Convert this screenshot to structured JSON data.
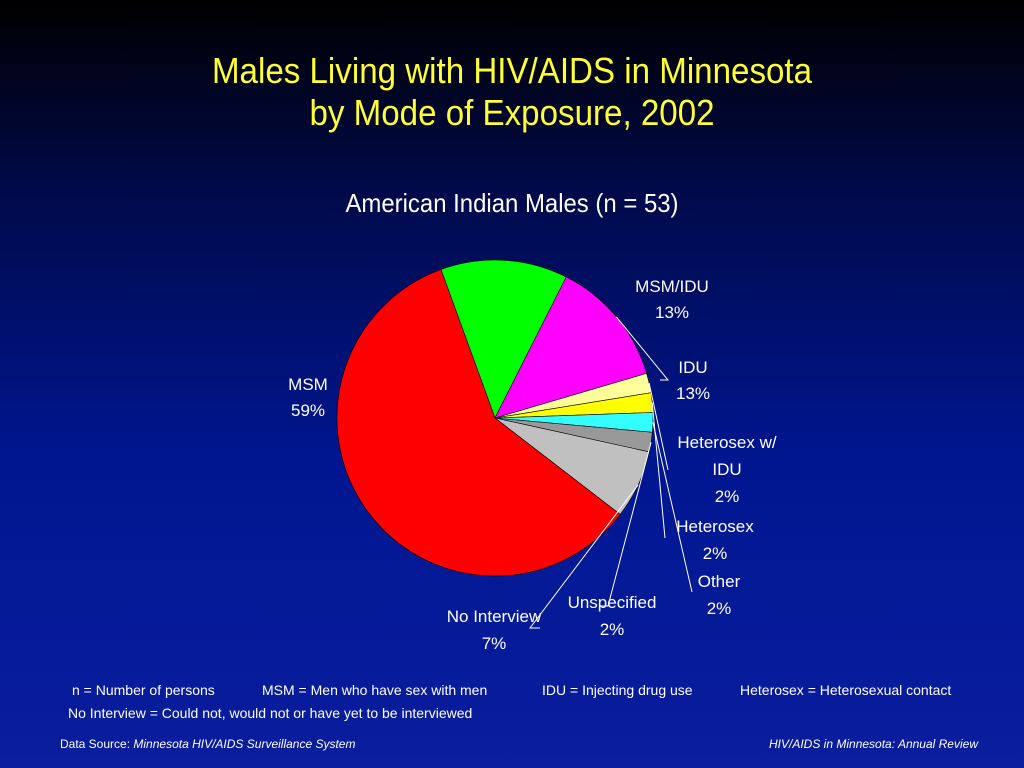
{
  "chart_data": {
    "type": "pie",
    "title_line1": "Males Living with HIV/AIDS in Minnesota",
    "title_line2": "by Mode of Exposure, 2002",
    "subtitle": "American Indian Males (n = 53)",
    "slices": [
      {
        "name": "MSM",
        "percent_label": "59%",
        "value": 59,
        "color": "#ff0000"
      },
      {
        "name": "MSM/IDU",
        "percent_label": "13%",
        "value": 13,
        "color": "#00ff00"
      },
      {
        "name": "IDU",
        "percent_label": "13%",
        "value": 13,
        "color": "#ff00ff"
      },
      {
        "name": "Heterosex w/ IDU",
        "label_lines": [
          "Heterosex w/",
          "IDU"
        ],
        "percent_label": "2%",
        "value": 2,
        "color": "#ffff99"
      },
      {
        "name": "Heterosex",
        "percent_label": "2%",
        "value": 2,
        "color": "#ffff00"
      },
      {
        "name": "Other",
        "percent_label": "2%",
        "value": 2,
        "color": "#33ffff"
      },
      {
        "name": "Unspecified",
        "percent_label": "2%",
        "value": 2,
        "color": "#999999"
      },
      {
        "name": "No Interview",
        "percent_label": "7%",
        "value": 7,
        "color": "#c0c0c0"
      }
    ]
  },
  "legend": {
    "n": "n = Number of persons",
    "msm": "MSM = Men who have sex with men",
    "idu": "IDU = Injecting drug use",
    "heterosex": "Heterosex = Heterosexual contact",
    "no_interview": "No Interview = Could not, would not or have yet to be interviewed"
  },
  "footer": {
    "source_label": "Data Source:",
    "source_name": "Minnesota HIV/AIDS Surveillance System",
    "report": "HIV/AIDS in Minnesota: Annual Review"
  }
}
